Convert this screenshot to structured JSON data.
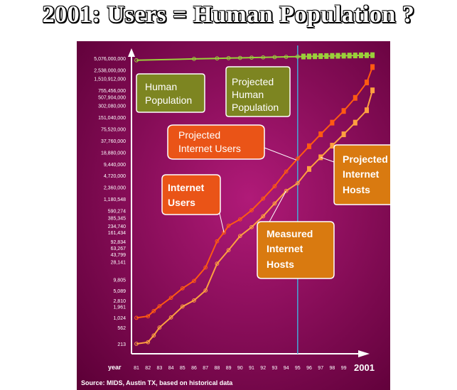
{
  "title": "2001: Users = Human Population ?",
  "colors": {
    "background_light": "#b01a78",
    "background_dark": "#5e0038",
    "human": "#9ad03a",
    "users": "#ff5a12",
    "hosts": "#ffa040",
    "marker_line": "#45a7d8",
    "box_olive": "#7d8521",
    "box_orange": "#ea5417",
    "box_amber": "#d97a10"
  },
  "chart_data": {
    "type": "line",
    "scale": "log",
    "xlabel": "year",
    "x_ticks": [
      "81",
      "82",
      "83",
      "84",
      "85",
      "86",
      "87",
      "88",
      "89",
      "90",
      "91",
      "92",
      "93",
      "94",
      "95",
      "96",
      "97",
      "98",
      "99"
    ],
    "x_end_label": "2001",
    "y_tick_labels": [
      "5,076,000,000",
      "2,538,000,000",
      "1,510,912,000",
      "755,456,000",
      "507,904,000",
      "302,080,000",
      "151,040,000",
      "75,520,000",
      "37,760,000",
      "18,880,000",
      "9,440,000",
      "4,720,000",
      "2,360,000",
      "1,180,548",
      "590,274",
      "385,345",
      "234,740",
      "161,434",
      "92,834",
      "63,267",
      "43,799",
      "28,141",
      "9,805",
      "5,089",
      "2,810",
      "1,961",
      "1,024",
      "562",
      "213"
    ],
    "divider_year": 95,
    "series": [
      {
        "name": "Human Population",
        "key": "human",
        "measured": [
          [
            81,
            4500000000
          ],
          [
            86,
            4880000000
          ],
          [
            88,
            5020000000
          ],
          [
            89,
            5100000000
          ],
          [
            90,
            5180000000
          ],
          [
            91,
            5260000000
          ],
          [
            92,
            5340000000
          ],
          [
            93,
            5420000000
          ],
          [
            94,
            5500000000
          ],
          [
            95,
            5580000000
          ]
        ],
        "projected": [
          [
            95,
            5580000000
          ],
          [
            95.5,
            5620000000
          ],
          [
            96,
            5660000000
          ],
          [
            96.5,
            5700000000
          ],
          [
            97,
            5740000000
          ],
          [
            97.5,
            5780000000
          ],
          [
            98,
            5820000000
          ],
          [
            98.5,
            5860000000
          ],
          [
            99,
            5900000000
          ],
          [
            99.5,
            5940000000
          ],
          [
            100,
            5980000000
          ],
          [
            100.5,
            6020000000
          ],
          [
            101,
            6060000000
          ],
          [
            101.5,
            6080000000
          ]
        ]
      },
      {
        "name": "Internet Users",
        "key": "users",
        "measured": [
          [
            81,
            1000
          ],
          [
            82,
            1100
          ],
          [
            82.5,
            1500
          ],
          [
            83,
            2000
          ],
          [
            84,
            3300
          ],
          [
            85,
            5800
          ],
          [
            86,
            9000
          ],
          [
            87,
            20000
          ],
          [
            88,
            95000
          ],
          [
            88.6,
            160000
          ],
          [
            89,
            240000
          ],
          [
            90,
            350000
          ],
          [
            91,
            600000
          ],
          [
            92,
            1200000
          ],
          [
            93,
            2500000
          ],
          [
            94,
            6000000
          ],
          [
            95,
            13000000
          ]
        ],
        "projected": [
          [
            95,
            13000000
          ],
          [
            96,
            27000000
          ],
          [
            97,
            55000000
          ],
          [
            98,
            110000000
          ],
          [
            99,
            220000000
          ],
          [
            100,
            480000000
          ],
          [
            101,
            1200000000
          ],
          [
            101.5,
            3000000000
          ]
        ]
      },
      {
        "name": "Measured Internet Hosts",
        "key": "hosts",
        "measured": [
          [
            81,
            213
          ],
          [
            82,
            235
          ],
          [
            82.5,
            350
          ],
          [
            83,
            562
          ],
          [
            84,
            1024
          ],
          [
            85,
            1961
          ],
          [
            86,
            2810
          ],
          [
            87,
            5089
          ],
          [
            88,
            25000
          ],
          [
            89,
            56000
          ],
          [
            90,
            130000
          ],
          [
            91,
            220000
          ],
          [
            92,
            420000
          ],
          [
            93,
            900000
          ],
          [
            94,
            1900000
          ],
          [
            95,
            3000000
          ]
        ],
        "projected": [
          [
            95,
            3000000
          ],
          [
            96,
            7000000
          ],
          [
            97,
            14000000
          ],
          [
            98,
            28000000
          ],
          [
            99,
            55000000
          ],
          [
            100,
            110000000
          ],
          [
            101,
            230000000
          ],
          [
            101.5,
            750000000
          ]
        ]
      }
    ],
    "annotations": {
      "human_population": "Human Population",
      "projected_human": "Projected Human Population",
      "projected_users": "Projected Internet Users",
      "internet_users": "Internet Users",
      "projected_hosts": "Projected Internet Hosts",
      "measured_hosts": "Measured Internet Hosts"
    },
    "source": "Source: MIDS, Austin TX, based on historical data"
  }
}
